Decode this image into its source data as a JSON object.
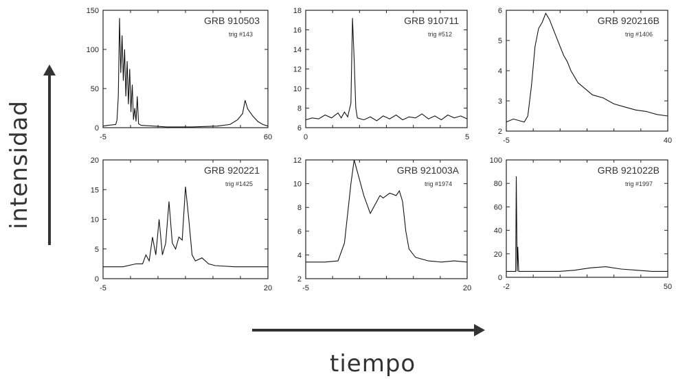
{
  "axis_titles": {
    "y": "intensidad",
    "x": "tiempo"
  },
  "chart_data": [
    {
      "type": "line",
      "title": "GRB 910503",
      "subtitle": "trig #143",
      "xlim": [
        -5,
        60
      ],
      "ylim": [
        0,
        150
      ],
      "yticks": [
        0,
        50,
        100,
        150
      ],
      "xticklabels": [
        "-5",
        "60"
      ],
      "points": [
        [
          -5,
          2
        ],
        [
          -3,
          3
        ],
        [
          0,
          4
        ],
        [
          0.5,
          10
        ],
        [
          1,
          40
        ],
        [
          1.5,
          140
        ],
        [
          2,
          70
        ],
        [
          2.5,
          118
        ],
        [
          3,
          60
        ],
        [
          3.5,
          100
        ],
        [
          4,
          40
        ],
        [
          4.5,
          85
        ],
        [
          5,
          30
        ],
        [
          5.5,
          75
        ],
        [
          6,
          20
        ],
        [
          6.5,
          55
        ],
        [
          7,
          10
        ],
        [
          7.5,
          25
        ],
        [
          8,
          8
        ],
        [
          8.5,
          40
        ],
        [
          9,
          5
        ],
        [
          10,
          3
        ],
        [
          15,
          2
        ],
        [
          20,
          1
        ],
        [
          30,
          1
        ],
        [
          40,
          2
        ],
        [
          45,
          4
        ],
        [
          48,
          10
        ],
        [
          50,
          18
        ],
        [
          51,
          35
        ],
        [
          52,
          24
        ],
        [
          54,
          15
        ],
        [
          56,
          8
        ],
        [
          58,
          4
        ],
        [
          60,
          2
        ]
      ]
    },
    {
      "type": "line",
      "title": "GRB 910711",
      "subtitle": "trig #512",
      "xlim": [
        0,
        5
      ],
      "ylim": [
        6,
        18
      ],
      "yticks": [
        6,
        8,
        10,
        12,
        14,
        16,
        18
      ],
      "xticklabels": [
        "0",
        "5"
      ],
      "points": [
        [
          0,
          6.8
        ],
        [
          0.2,
          7.0
        ],
        [
          0.4,
          6.9
        ],
        [
          0.6,
          7.3
        ],
        [
          0.8,
          7.0
        ],
        [
          1.0,
          7.5
        ],
        [
          1.1,
          7.0
        ],
        [
          1.2,
          7.6
        ],
        [
          1.3,
          7.1
        ],
        [
          1.4,
          8.5
        ],
        [
          1.45,
          17.2
        ],
        [
          1.5,
          13.0
        ],
        [
          1.55,
          8.0
        ],
        [
          1.6,
          7.0
        ],
        [
          1.8,
          6.8
        ],
        [
          2.0,
          7.1
        ],
        [
          2.2,
          6.7
        ],
        [
          2.4,
          7.2
        ],
        [
          2.6,
          6.9
        ],
        [
          2.8,
          7.3
        ],
        [
          3.0,
          6.8
        ],
        [
          3.2,
          7.1
        ],
        [
          3.4,
          7.0
        ],
        [
          3.6,
          7.4
        ],
        [
          3.8,
          6.9
        ],
        [
          4.0,
          7.2
        ],
        [
          4.2,
          6.8
        ],
        [
          4.4,
          7.3
        ],
        [
          4.6,
          7.0
        ],
        [
          4.8,
          7.2
        ],
        [
          5.0,
          6.9
        ]
      ]
    },
    {
      "type": "line",
      "title": "GRB 920216B",
      "subtitle": "trig #1406",
      "xlim": [
        -5,
        40
      ],
      "ylim": [
        2,
        6
      ],
      "yticks": [
        2,
        3,
        4,
        5,
        6
      ],
      "xticklabels": [
        "-5",
        "40"
      ],
      "points": [
        [
          -5,
          2.3
        ],
        [
          -3,
          2.4
        ],
        [
          0,
          2.3
        ],
        [
          1,
          2.5
        ],
        [
          2,
          3.5
        ],
        [
          3,
          4.8
        ],
        [
          4,
          5.4
        ],
        [
          5,
          5.6
        ],
        [
          6,
          5.9
        ],
        [
          7,
          5.7
        ],
        [
          8,
          5.4
        ],
        [
          9,
          5.1
        ],
        [
          10,
          4.8
        ],
        [
          11,
          4.5
        ],
        [
          12,
          4.3
        ],
        [
          13,
          4.0
        ],
        [
          14,
          3.8
        ],
        [
          15,
          3.6
        ],
        [
          17,
          3.4
        ],
        [
          19,
          3.2
        ],
        [
          22,
          3.1
        ],
        [
          25,
          2.9
        ],
        [
          28,
          2.8
        ],
        [
          31,
          2.7
        ],
        [
          34,
          2.65
        ],
        [
          37,
          2.55
        ],
        [
          40,
          2.5
        ]
      ]
    },
    {
      "type": "line",
      "title": "GRB 920221",
      "subtitle": "trig #1425",
      "xlim": [
        -5,
        20
      ],
      "ylim": [
        0,
        20
      ],
      "yticks": [
        0,
        5,
        10,
        15,
        20
      ],
      "xticklabels": [
        "-5",
        "20"
      ],
      "points": [
        [
          -5,
          2
        ],
        [
          -2,
          2
        ],
        [
          0,
          2.5
        ],
        [
          1,
          2.5
        ],
        [
          1.5,
          4
        ],
        [
          2,
          3
        ],
        [
          2.5,
          7
        ],
        [
          3,
          4
        ],
        [
          3.5,
          10
        ],
        [
          4,
          4
        ],
        [
          4.5,
          6
        ],
        [
          5,
          13
        ],
        [
          5.5,
          6
        ],
        [
          6,
          5
        ],
        [
          6.5,
          7
        ],
        [
          7,
          6.5
        ],
        [
          7.5,
          15.5
        ],
        [
          8,
          10
        ],
        [
          8.5,
          4
        ],
        [
          9,
          3
        ],
        [
          10,
          3.5
        ],
        [
          11,
          2.5
        ],
        [
          12,
          2.2
        ],
        [
          15,
          2
        ],
        [
          18,
          2
        ],
        [
          20,
          2
        ]
      ]
    },
    {
      "type": "line",
      "title": "GRB 921003A",
      "subtitle": "trig #1974",
      "xlim": [
        -5,
        20
      ],
      "ylim": [
        2,
        12
      ],
      "yticks": [
        2,
        4,
        6,
        8,
        10,
        12
      ],
      "xticklabels": [
        "-5",
        "20"
      ],
      "points": [
        [
          -5,
          3.4
        ],
        [
          -2,
          3.4
        ],
        [
          0,
          3.5
        ],
        [
          1,
          5
        ],
        [
          2,
          10
        ],
        [
          2.5,
          12
        ],
        [
          3,
          11
        ],
        [
          4,
          9
        ],
        [
          5,
          7.5
        ],
        [
          6,
          8.5
        ],
        [
          6.5,
          9
        ],
        [
          7,
          8.8
        ],
        [
          8,
          9.2
        ],
        [
          9,
          9.0
        ],
        [
          9.5,
          9.4
        ],
        [
          10,
          8.5
        ],
        [
          10.5,
          6
        ],
        [
          11,
          4.5
        ],
        [
          12,
          3.8
        ],
        [
          14,
          3.5
        ],
        [
          16,
          3.4
        ],
        [
          18,
          3.5
        ],
        [
          20,
          3.4
        ]
      ]
    },
    {
      "type": "line",
      "title": "GRB 921022B",
      "subtitle": "trig #1997",
      "xlim": [
        -2,
        50
      ],
      "ylim": [
        0,
        100
      ],
      "yticks": [
        0,
        20,
        40,
        60,
        80,
        100
      ],
      "xticklabels": [
        "-2",
        "50"
      ],
      "points": [
        [
          -2,
          5
        ],
        [
          1,
          5
        ],
        [
          1.2,
          86
        ],
        [
          1.5,
          5
        ],
        [
          1.7,
          26
        ],
        [
          2,
          5
        ],
        [
          5,
          5
        ],
        [
          10,
          5
        ],
        [
          15,
          5
        ],
        [
          20,
          6
        ],
        [
          25,
          8
        ],
        [
          30,
          9
        ],
        [
          35,
          7
        ],
        [
          40,
          6
        ],
        [
          45,
          5
        ],
        [
          50,
          5
        ]
      ]
    }
  ]
}
